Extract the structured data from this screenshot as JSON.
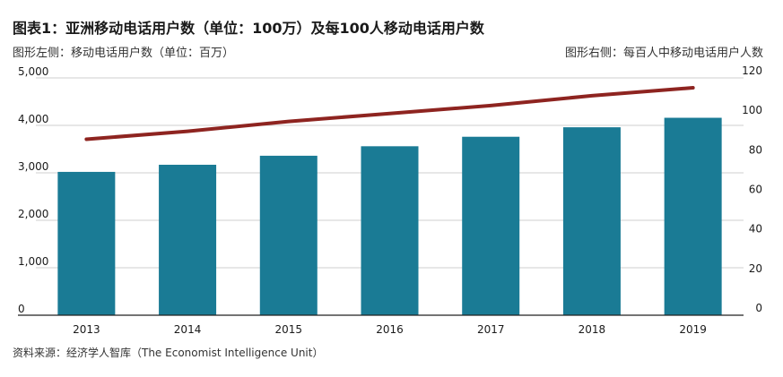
{
  "title": "图表1：亚洲移动电话用户数（单位：100万）及每100人移动电话用户数",
  "subtitle_left": "图形左侧：移动电话用户数（单位：百万）",
  "subtitle_right": "图形右侧：每百人中移动电话用户人数",
  "source": "资料来源：经济学人智库（The Economist Intelligence Unit）",
  "colors": {
    "bar": "#1a7b95",
    "line": "#8e2420",
    "grid": "#cfcfcf",
    "axis": "#222222"
  },
  "chart_data": {
    "type": "bar",
    "categories": [
      "2013",
      "2014",
      "2015",
      "2016",
      "2017",
      "2018",
      "2019"
    ],
    "series": [
      {
        "type": "bar",
        "axis": "left",
        "values": [
          3020,
          3170,
          3360,
          3560,
          3760,
          3960,
          4160
        ]
      },
      {
        "type": "line",
        "axis": "right",
        "values": [
          89,
          93,
          98,
          102,
          106,
          111,
          115
        ]
      }
    ],
    "y_left": {
      "ylim": [
        0,
        5000
      ],
      "ticks": [
        0,
        1000,
        2000,
        3000,
        4000,
        5000
      ],
      "tick_labels": [
        "0",
        "1,000",
        "2,000",
        "3,000",
        "4,000",
        "5,000"
      ]
    },
    "y_right": {
      "ylim": [
        0,
        120
      ],
      "ticks": [
        0,
        20,
        40,
        60,
        80,
        100,
        120
      ],
      "tick_labels": [
        "0",
        "20",
        "40",
        "60",
        "80",
        "100",
        "120"
      ]
    },
    "grid": true
  }
}
